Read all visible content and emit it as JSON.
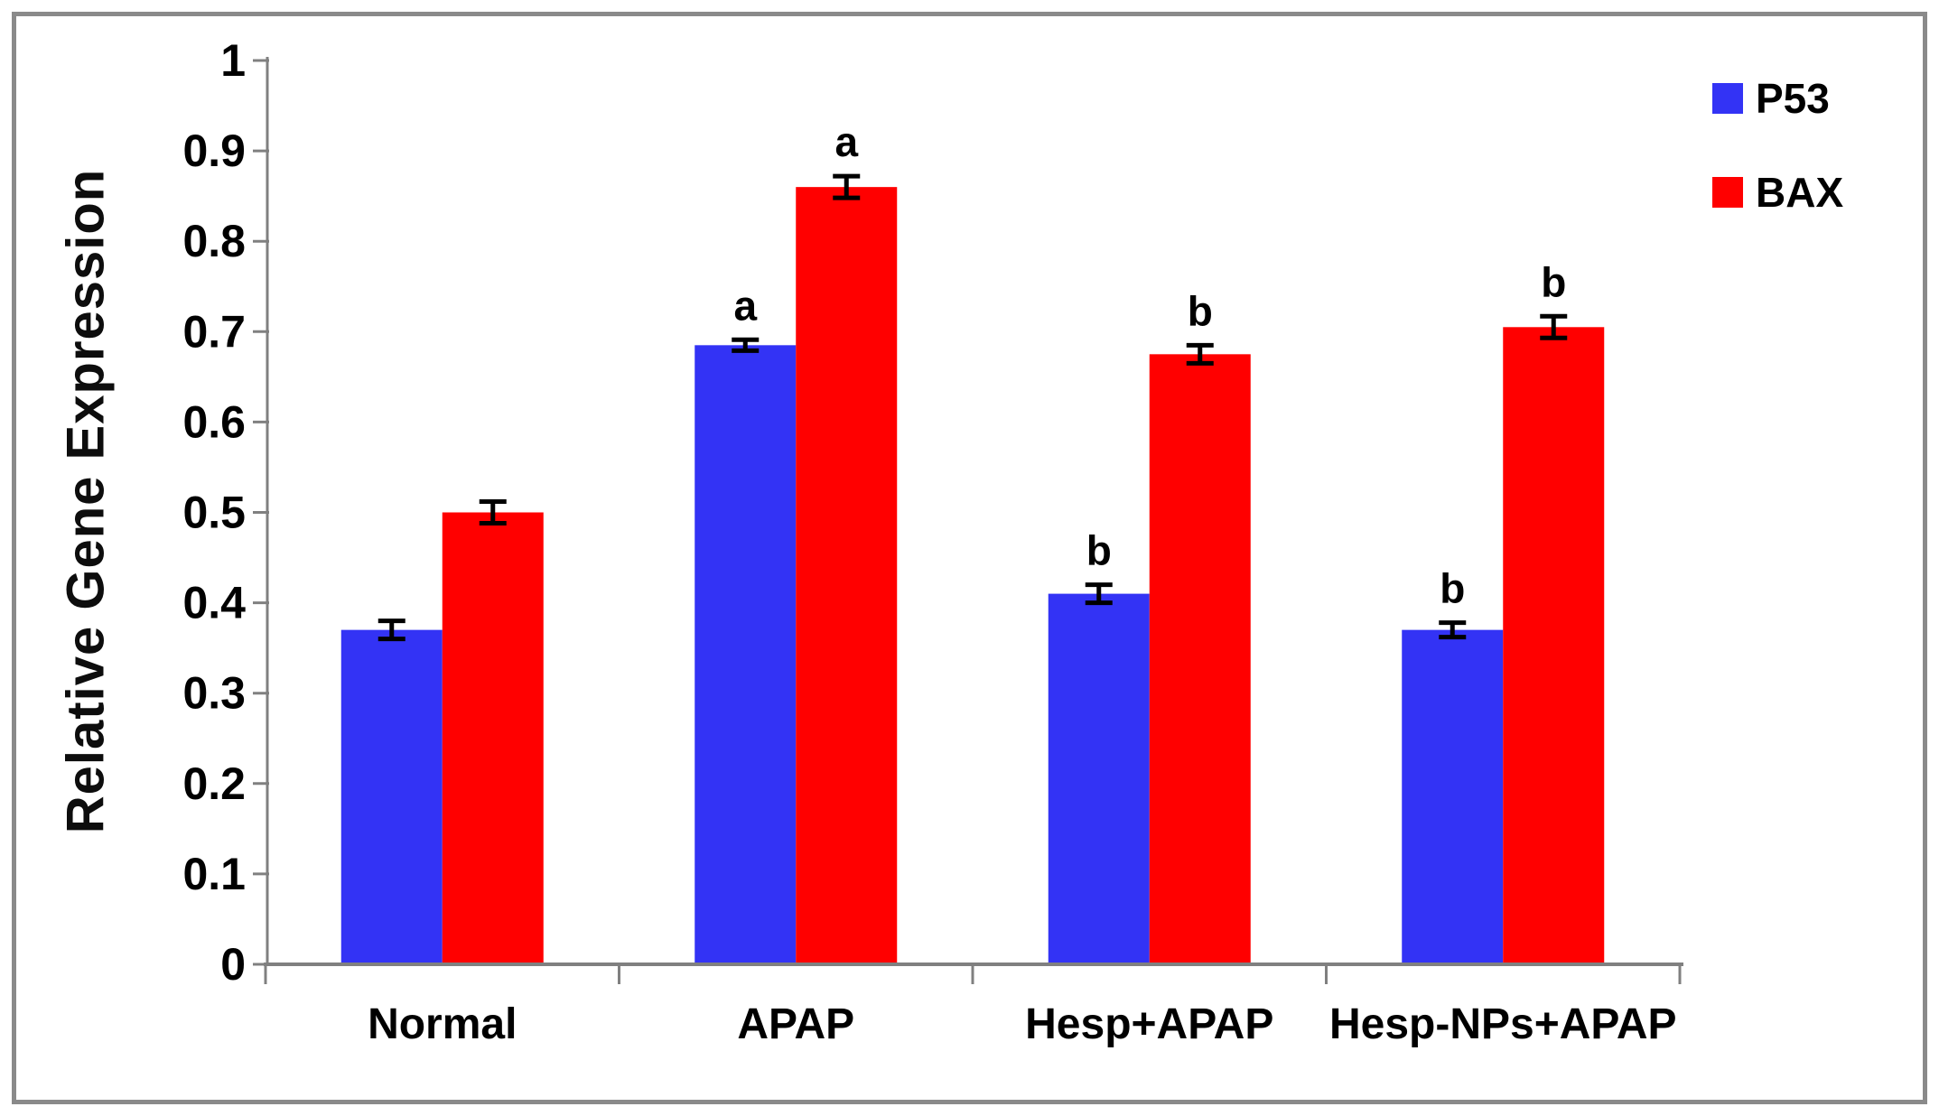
{
  "figure": {
    "background": "#ffffff",
    "border_color": "#8a8a8a",
    "axis_color": "#808080",
    "text_color": "#000000"
  },
  "chart_data": {
    "type": "bar",
    "title": "",
    "xlabel": "",
    "ylabel": "Relative Gene Expression",
    "ylim": [
      0,
      1
    ],
    "ytick_step": 0.1,
    "ytick_labels": [
      "0",
      "0.1",
      "0.2",
      "0.3",
      "0.4",
      "0.5",
      "0.6",
      "0.7",
      "0.8",
      "0.9",
      "1"
    ],
    "grid": false,
    "legend_position": "top-right",
    "categories": [
      "Normal",
      "APAP",
      "Hesp+APAP",
      "Hesp-NPs+APAP"
    ],
    "series": [
      {
        "name": "P53",
        "color": "#3333F5",
        "values": [
          0.37,
          0.685,
          0.41,
          0.37
        ],
        "errors": [
          0.01,
          0.006,
          0.01,
          0.008
        ],
        "sig_letters": [
          "",
          "a",
          "b",
          "b"
        ]
      },
      {
        "name": "BAX",
        "color": "#FF0000",
        "values": [
          0.5,
          0.86,
          0.675,
          0.705
        ],
        "errors": [
          0.012,
          0.012,
          0.01,
          0.012
        ],
        "sig_letters": [
          "",
          "a",
          "b",
          "b"
        ]
      }
    ],
    "error_bar_color": "#000000"
  }
}
